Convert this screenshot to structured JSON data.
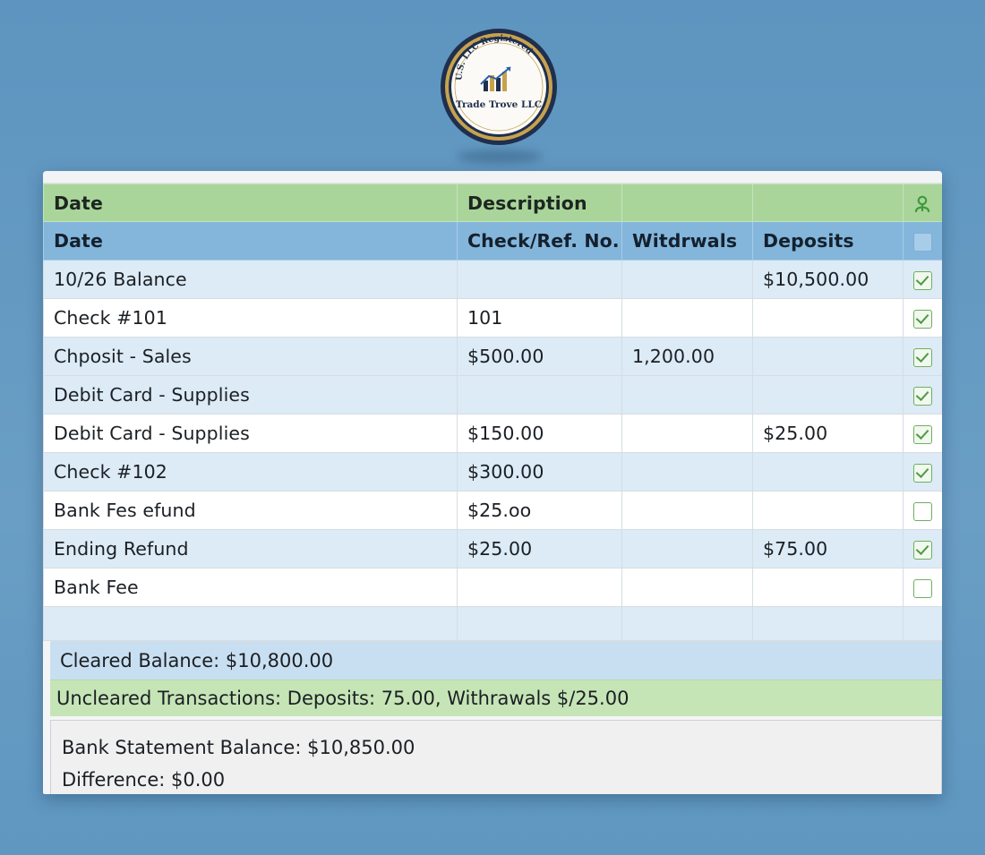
{
  "logo": {
    "arc_text": "U.S. LLC Registered",
    "name": "Trade Trove LLC"
  },
  "table": {
    "header_top": [
      "Date",
      "Description",
      "",
      ""
    ],
    "header_columns": [
      "Date",
      "Check/Ref. No.",
      "Witdrwals",
      "Deposits"
    ],
    "rows": [
      {
        "description": "10/26 Balance",
        "ref": "",
        "withdrawals": "",
        "deposits": "$10,500.00",
        "cleared": true
      },
      {
        "description": "Check #101",
        "ref": "101",
        "withdrawals": "",
        "deposits": "",
        "cleared": true
      },
      {
        "description": "Chposit - Sales",
        "ref": "$500.00",
        "withdrawals": "1,200.00",
        "deposits": "",
        "cleared": true
      },
      {
        "description": "Debit Card - Supplies",
        "ref": "",
        "withdrawals": "",
        "deposits": "",
        "cleared": true
      },
      {
        "description": "Debit Card - Supplies",
        "ref": "$150.00",
        "withdrawals": "",
        "deposits": "$25.00",
        "cleared": true
      },
      {
        "description": "Check #102",
        "ref": "$300.00",
        "withdrawals": "",
        "deposits": "",
        "cleared": true
      },
      {
        "description": "Bank Fes efund",
        "ref": "$25.oo",
        "withdrawals": "",
        "deposits": "",
        "cleared": false
      },
      {
        "description": "Ending Refund",
        "ref": "$25.00",
        "withdrawals": "",
        "deposits": "$75.00",
        "cleared": true
      },
      {
        "description": "Bank Fee",
        "ref": "",
        "withdrawals": "",
        "deposits": "",
        "cleared": false
      }
    ]
  },
  "summary": {
    "cleared_balance": "Cleared Balance: $10,800.00",
    "uncleared_transactions": "Uncleared Transactions: Deposits: 75.00, Withrawals $/25.00",
    "bank_statement_balance": "Bank Statement Balance: $10,850.00",
    "difference": "Difference: $0.00"
  },
  "colors": {
    "background": "#6498bf",
    "header_green": "#a9d59b",
    "header_blue": "#84b6dc",
    "row_alt": "#dcebf6",
    "check_green": "#4f9a44"
  },
  "icons": {
    "header_user": "user-icon",
    "checkbox": "checkbox-icon"
  }
}
